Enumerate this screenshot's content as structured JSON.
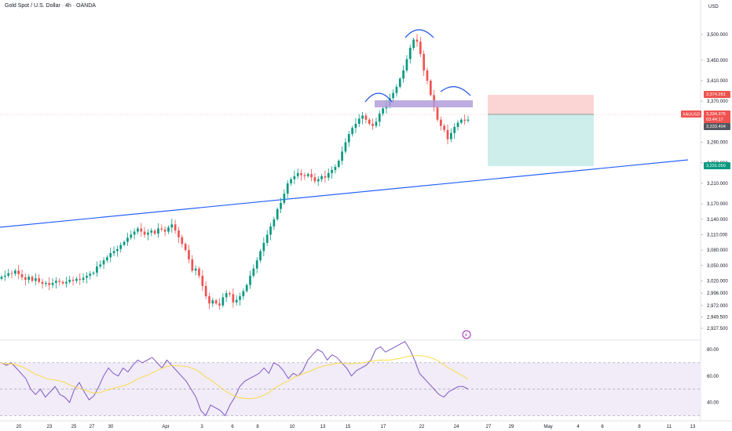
{
  "header": {
    "title": "Gold Spot / U.S. Dollar · 4h · OANDA"
  },
  "price_axis": {
    "currency": "USD",
    "ticks": [
      "3,500.000",
      "3,450.000",
      "3,410.000",
      "3,370.000",
      "3,290.000",
      "3,250.000",
      "3,210.000",
      "3,170.000",
      "3,140.000",
      "3,110.000",
      "3,080.000",
      "3,050.000",
      "3,020.000",
      "2,996.000",
      "2,972.000",
      "2,949.500",
      "2,927.500"
    ],
    "tick_values": [
      3500,
      3450,
      3410,
      3370,
      3290,
      3250,
      3210,
      3170,
      3140,
      3110,
      3080,
      3050,
      3020,
      2996,
      2972,
      2949.5,
      2927.5
    ]
  },
  "price_labels": {
    "stop_loss": "3,374.261",
    "symbol": "XAUUSD",
    "last_price": "3,334.375",
    "countdown": "03:44:17",
    "current": "3,333.404",
    "take_profit": "3,231.050"
  },
  "rsi_axis": {
    "ticks": [
      "80.00",
      "60.00",
      "40.00"
    ]
  },
  "time_axis": {
    "labels": [
      "20",
      "23",
      "25",
      "27",
      "30",
      "Apr",
      "3",
      "6",
      "8",
      "10",
      "13",
      "15",
      "17",
      "22",
      "24",
      "27",
      "29",
      "May",
      "4",
      "6",
      "8",
      "11",
      "13"
    ]
  },
  "colors": {
    "up": "#089981",
    "down": "#ef5350",
    "trendline": "#2962ff",
    "zone": "#b39ddb",
    "rsi_line": "#7e57c2",
    "rsi_ma": "#fdd835",
    "sl_box": "#fbd5d3",
    "tp_box": "#cdeeea"
  },
  "chart_data": {
    "type": "candlestick",
    "title": "Gold Spot / U.S. Dollar · 4h · OANDA",
    "interval": "4h",
    "x_range": [
      "Mar 20",
      "May 13"
    ],
    "ylim": [
      2927.5,
      3500
    ],
    "price": {
      "close_series": [
        3028,
        3030,
        3035,
        3034,
        3040,
        3033,
        3027,
        3022,
        3028,
        3020,
        3025,
        3018,
        3014,
        3016,
        3012,
        3016,
        3020,
        3018,
        3015,
        3018,
        3022,
        3020,
        3024,
        3022,
        3026,
        3030,
        3034,
        3036,
        3048,
        3052,
        3060,
        3066,
        3074,
        3078,
        3082,
        3090,
        3096,
        3104,
        3110,
        3116,
        3122,
        3116,
        3110,
        3114,
        3118,
        3112,
        3122,
        3120,
        3116,
        3124,
        3130,
        3118,
        3105,
        3092,
        3080,
        3062,
        3040,
        3044,
        3030,
        3010,
        2990,
        2976,
        2982,
        2976,
        2972,
        2988,
        2996,
        2994,
        2978,
        2983,
        2990,
        3000,
        3012,
        3030,
        3044,
        3060,
        3078,
        3094,
        3110,
        3126,
        3140,
        3160,
        3172,
        3190,
        3210,
        3218,
        3224,
        3230,
        3226,
        3224,
        3228,
        3222,
        3214,
        3218,
        3224,
        3221,
        3230,
        3236,
        3242,
        3254,
        3272,
        3290,
        3306,
        3318,
        3326,
        3336,
        3342,
        3334,
        3326,
        3322,
        3330,
        3346,
        3356,
        3362,
        3376,
        3386,
        3398,
        3414,
        3430,
        3452,
        3474,
        3490,
        3486,
        3462,
        3430,
        3410,
        3382,
        3358,
        3334,
        3322,
        3314,
        3296,
        3308,
        3320,
        3328,
        3334,
        3332,
        3334
      ],
      "range_start_price": 3028,
      "range_end_price": 3334
    },
    "pattern": {
      "name": "head and shoulders",
      "neckline_zone": [
        3355,
        3367
      ]
    },
    "trendline": {
      "start": {
        "x": "Mar 20",
        "price": 3100
      },
      "end": {
        "x": "May 8",
        "price": 3224
      }
    },
    "position": {
      "type": "short",
      "entry": 3334.375,
      "stop_loss": 3374.261,
      "take_profit": 3231.05
    },
    "rsi": {
      "levels": [
        70,
        50,
        30
      ],
      "ylim": [
        35,
        90
      ],
      "values": [
        70,
        68,
        70,
        66,
        62,
        58,
        50,
        46,
        50,
        44,
        48,
        52,
        46,
        44,
        40,
        50,
        55,
        48,
        42,
        45,
        52,
        60,
        66,
        62,
        60,
        66,
        63,
        68,
        72,
        70,
        72,
        74,
        70,
        66,
        72,
        68,
        64,
        60,
        56,
        50,
        44,
        34,
        30,
        38,
        36,
        34,
        30,
        38,
        44,
        52,
        56,
        58,
        60,
        62,
        66,
        62,
        70,
        68,
        64,
        58,
        62,
        60,
        64,
        72,
        76,
        80,
        78,
        72,
        76,
        74,
        70,
        66,
        60,
        64,
        66,
        68,
        72,
        80,
        82,
        78,
        80,
        82,
        84,
        86,
        80,
        72,
        62,
        58,
        54,
        50,
        46,
        44,
        48,
        50,
        52,
        52,
        50
      ]
    }
  }
}
